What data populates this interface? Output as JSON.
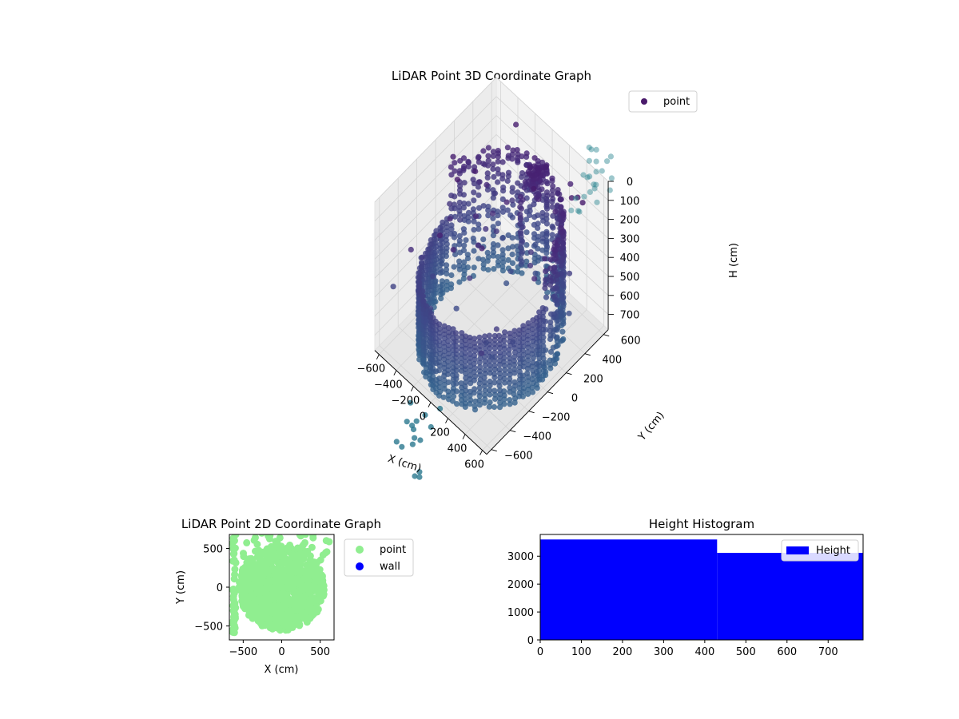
{
  "chart_data": [
    {
      "type": "scatter3d",
      "title": "LiDAR Point 3D Coordinate Graph",
      "xlabel": "X (cm)",
      "ylabel": "Y (cm)",
      "zlabel": "H (cm)",
      "x_ticks": [
        -600,
        -400,
        -200,
        0,
        200,
        400,
        600
      ],
      "y_ticks": [
        -600,
        -400,
        -200,
        0,
        200,
        400,
        600
      ],
      "z_ticks": [
        0,
        100,
        200,
        300,
        400,
        500,
        600,
        700
      ],
      "xlim": [
        -650,
        650
      ],
      "ylim": [
        -650,
        650
      ],
      "zlim": [
        0,
        780
      ],
      "z_axis_inverted": true,
      "colormap": "viridis",
      "legend": {
        "entries": [
          {
            "name": "point",
            "color": "#4a1a6b"
          }
        ],
        "placement": "upper-right"
      },
      "description": "cylindrical wall of points, radius ~560 cm, heights 0-780 cm, plus scattered outliers"
    },
    {
      "type": "scatter",
      "title": "LiDAR Point 2D Coordinate Graph",
      "xlabel": "X (cm)",
      "ylabel": "Y (cm)",
      "x_ticks": [
        -500,
        0,
        500
      ],
      "y_ticks": [
        -500,
        0,
        500
      ],
      "xlim": [
        -680,
        680
      ],
      "ylim": [
        -680,
        680
      ],
      "series": [
        {
          "name": "point",
          "color": "#90ee90"
        },
        {
          "name": "wall",
          "color": "#0000ff"
        }
      ],
      "legend_placement": "outside-right"
    },
    {
      "type": "bar",
      "title": "Height Histogram",
      "x_ticks": [
        0,
        100,
        200,
        300,
        400,
        500,
        600,
        700
      ],
      "y_ticks": [
        0,
        1000,
        2000,
        3000
      ],
      "xlim": [
        0,
        785
      ],
      "ylim": [
        0,
        3780
      ],
      "bins": [
        {
          "x0": 0,
          "x1": 430,
          "value": 3600
        },
        {
          "x0": 430,
          "x1": 785,
          "value": 3120
        }
      ],
      "series": [
        {
          "name": "Height",
          "color": "#0000ff"
        }
      ],
      "legend_placement": "upper-right"
    }
  ]
}
